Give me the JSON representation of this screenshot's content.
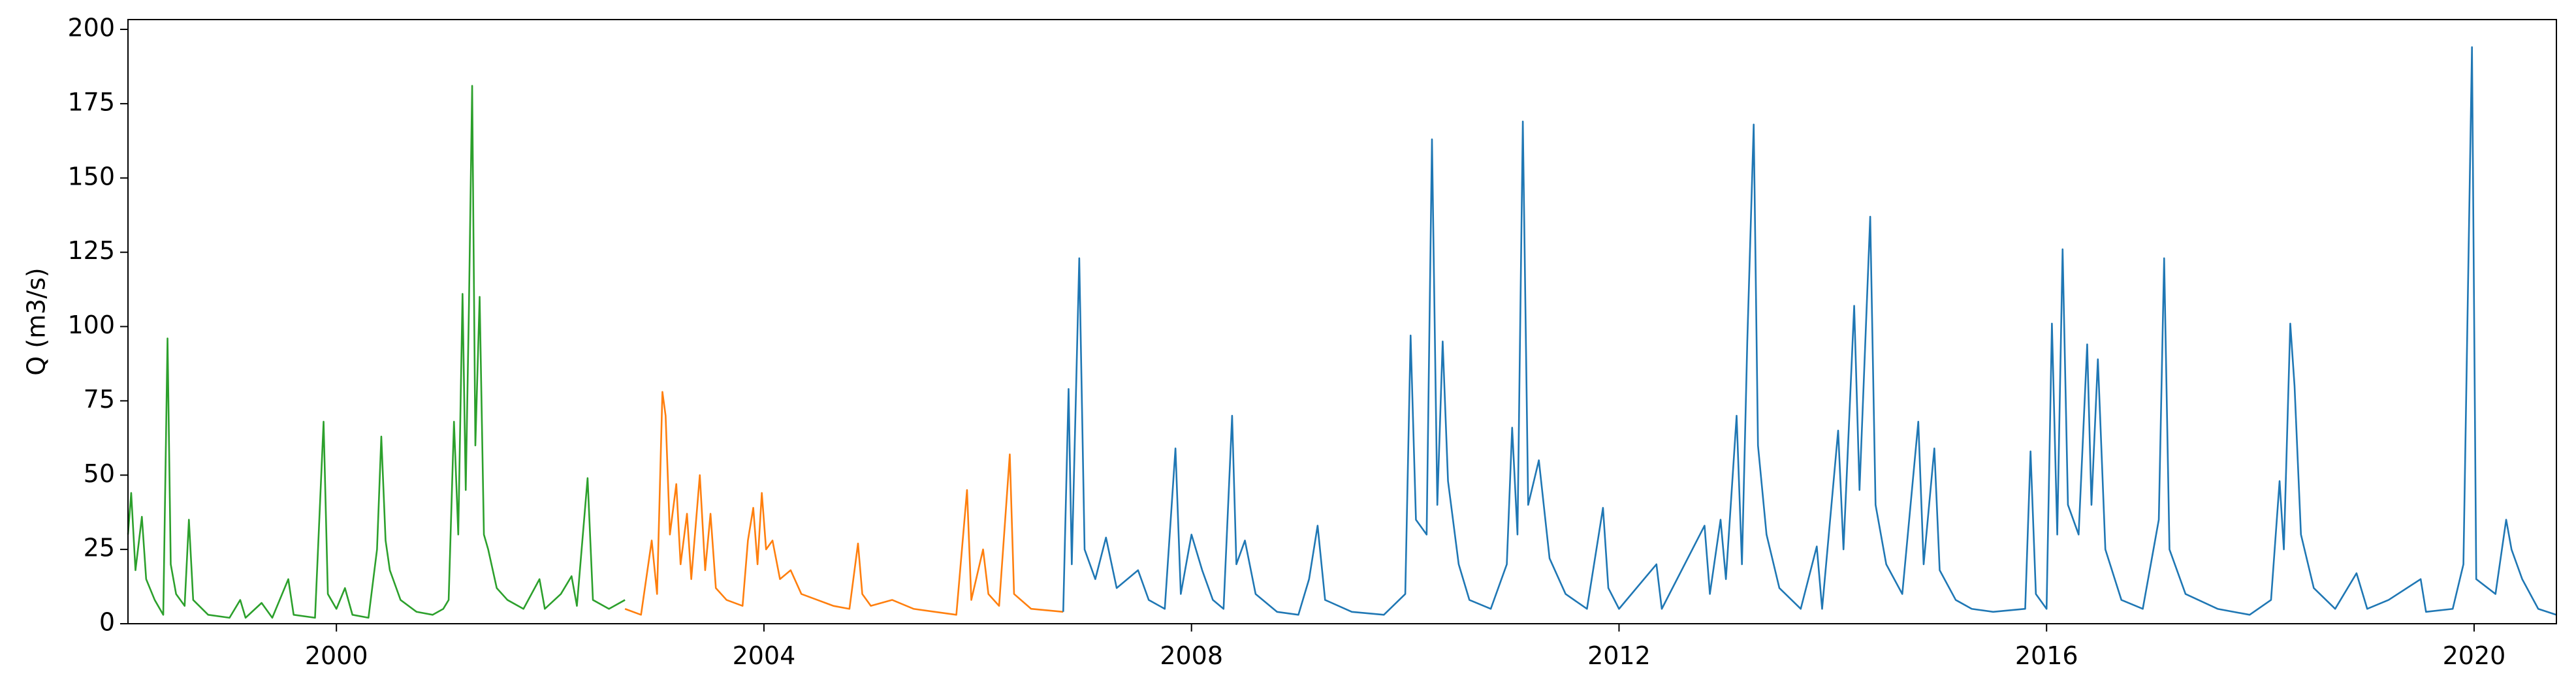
{
  "chart_data": {
    "type": "line",
    "y_label": "Q (m3/s)",
    "xlim": [
      1998.05,
      2020.77
    ],
    "xticks": [
      2000,
      2004,
      2008,
      2012,
      2016,
      2020
    ],
    "ylim": [
      0,
      203.3
    ],
    "yticks": [
      0,
      25,
      50,
      75,
      100,
      125,
      150,
      175,
      200
    ],
    "series": [
      {
        "color": "#2ca02c",
        "x": [
          1998.05,
          1998.08,
          1998.12,
          1998.18,
          1998.22,
          1998.3,
          1998.38,
          1998.42,
          1998.45,
          1998.5,
          1998.58,
          1998.62,
          1998.66,
          1998.8,
          1999.0,
          1999.1,
          1999.15,
          1999.3,
          1999.4,
          1999.55,
          1999.6,
          1999.8,
          1999.88,
          1999.92,
          2000.0,
          2000.08,
          2000.15,
          2000.3,
          2000.38,
          2000.42,
          2000.46,
          2000.5,
          2000.6,
          2000.75,
          2000.9,
          2001.0,
          2001.05,
          2001.1,
          2001.14,
          2001.18,
          2001.21,
          2001.24,
          2001.27,
          2001.3,
          2001.34,
          2001.38,
          2001.42,
          2001.5,
          2001.6,
          2001.75,
          2001.9,
          2001.95,
          2002.1,
          2002.2,
          2002.25,
          2002.35,
          2002.4,
          2002.55,
          2002.7
        ],
        "values": [
          30,
          44,
          18,
          36,
          15,
          8,
          3,
          96,
          20,
          10,
          6,
          35,
          8,
          3,
          2,
          8,
          2,
          7,
          2,
          15,
          3,
          2,
          68,
          10,
          5,
          12,
          3,
          2,
          25,
          63,
          28,
          18,
          8,
          4,
          3,
          5,
          8,
          68,
          30,
          111,
          45,
          107,
          181,
          60,
          110,
          30,
          25,
          12,
          8,
          5,
          15,
          5,
          10,
          16,
          6,
          49,
          8,
          5,
          8
        ]
      },
      {
        "color": "#ff7f0e",
        "x": [
          2002.7,
          2002.85,
          2002.95,
          2003.0,
          2003.05,
          2003.08,
          2003.12,
          2003.18,
          2003.22,
          2003.28,
          2003.32,
          2003.4,
          2003.45,
          2003.5,
          2003.55,
          2003.65,
          2003.8,
          2003.85,
          2003.9,
          2003.94,
          2003.98,
          2004.02,
          2004.08,
          2004.15,
          2004.25,
          2004.35,
          2004.5,
          2004.65,
          2004.8,
          2004.88,
          2004.92,
          2005.0,
          2005.2,
          2005.4,
          2005.6,
          2005.8,
          2005.9,
          2005.94,
          2006.05,
          2006.1,
          2006.2,
          2006.3,
          2006.34,
          2006.5,
          2006.8
        ],
        "values": [
          5,
          3,
          28,
          10,
          78,
          70,
          30,
          47,
          20,
          37,
          15,
          50,
          18,
          37,
          12,
          8,
          6,
          28,
          39,
          20,
          44,
          25,
          28,
          15,
          18,
          10,
          8,
          6,
          5,
          27,
          10,
          6,
          8,
          5,
          4,
          3,
          45,
          8,
          25,
          10,
          6,
          57,
          10,
          5,
          4
        ]
      },
      {
        "color": "#1f77b4",
        "x": [
          2006.8,
          2006.85,
          2006.88,
          2006.95,
          2007.0,
          2007.1,
          2007.2,
          2007.3,
          2007.5,
          2007.6,
          2007.75,
          2007.85,
          2007.9,
          2008.0,
          2008.1,
          2008.2,
          2008.3,
          2008.38,
          2008.42,
          2008.5,
          2008.6,
          2008.8,
          2009.0,
          2009.1,
          2009.18,
          2009.25,
          2009.5,
          2009.8,
          2010.0,
          2010.05,
          2010.1,
          2010.2,
          2010.25,
          2010.3,
          2010.35,
          2010.4,
          2010.5,
          2010.6,
          2010.8,
          2010.95,
          2011.0,
          2011.05,
          2011.1,
          2011.15,
          2011.25,
          2011.35,
          2011.5,
          2011.7,
          2011.85,
          2011.9,
          2012.0,
          2012.35,
          2012.4,
          2012.8,
          2012.85,
          2012.95,
          2013.0,
          2013.1,
          2013.15,
          2013.2,
          2013.26,
          2013.3,
          2013.38,
          2013.5,
          2013.7,
          2013.85,
          2013.9,
          2014.05,
          2014.1,
          2014.2,
          2014.25,
          2014.35,
          2014.4,
          2014.5,
          2014.65,
          2014.8,
          2014.85,
          2014.95,
          2015.0,
          2015.15,
          2015.3,
          2015.5,
          2015.8,
          2015.85,
          2015.9,
          2016.0,
          2016.05,
          2016.1,
          2016.15,
          2016.2,
          2016.3,
          2016.38,
          2016.42,
          2016.48,
          2016.55,
          2016.7,
          2016.9,
          2017.05,
          2017.1,
          2017.15,
          2017.3,
          2017.6,
          2017.9,
          2018.1,
          2018.18,
          2018.22,
          2018.28,
          2018.32,
          2018.38,
          2018.5,
          2018.7,
          2018.9,
          2019.0,
          2019.2,
          2019.5,
          2019.55,
          2019.8,
          2019.9,
          2019.98,
          2020.02,
          2020.2,
          2020.3,
          2020.35,
          2020.45,
          2020.6,
          2020.77
        ],
        "values": [
          4,
          79,
          20,
          123,
          25,
          15,
          29,
          12,
          18,
          8,
          5,
          59,
          10,
          30,
          18,
          8,
          5,
          70,
          20,
          28,
          10,
          4,
          3,
          15,
          33,
          8,
          4,
          3,
          10,
          97,
          35,
          30,
          163,
          40,
          95,
          48,
          20,
          8,
          5,
          20,
          66,
          30,
          169,
          40,
          55,
          22,
          10,
          5,
          39,
          12,
          5,
          20,
          5,
          33,
          10,
          35,
          15,
          70,
          20,
          95,
          168,
          60,
          30,
          12,
          5,
          26,
          5,
          65,
          25,
          107,
          45,
          137,
          40,
          20,
          10,
          68,
          20,
          59,
          18,
          8,
          5,
          4,
          5,
          58,
          10,
          5,
          101,
          30,
          126,
          40,
          30,
          94,
          40,
          89,
          25,
          8,
          5,
          35,
          123,
          25,
          10,
          5,
          3,
          8,
          48,
          25,
          101,
          80,
          30,
          12,
          5,
          17,
          5,
          8,
          15,
          4,
          5,
          20,
          194,
          15,
          10,
          35,
          25,
          15,
          5,
          3
        ]
      }
    ]
  }
}
